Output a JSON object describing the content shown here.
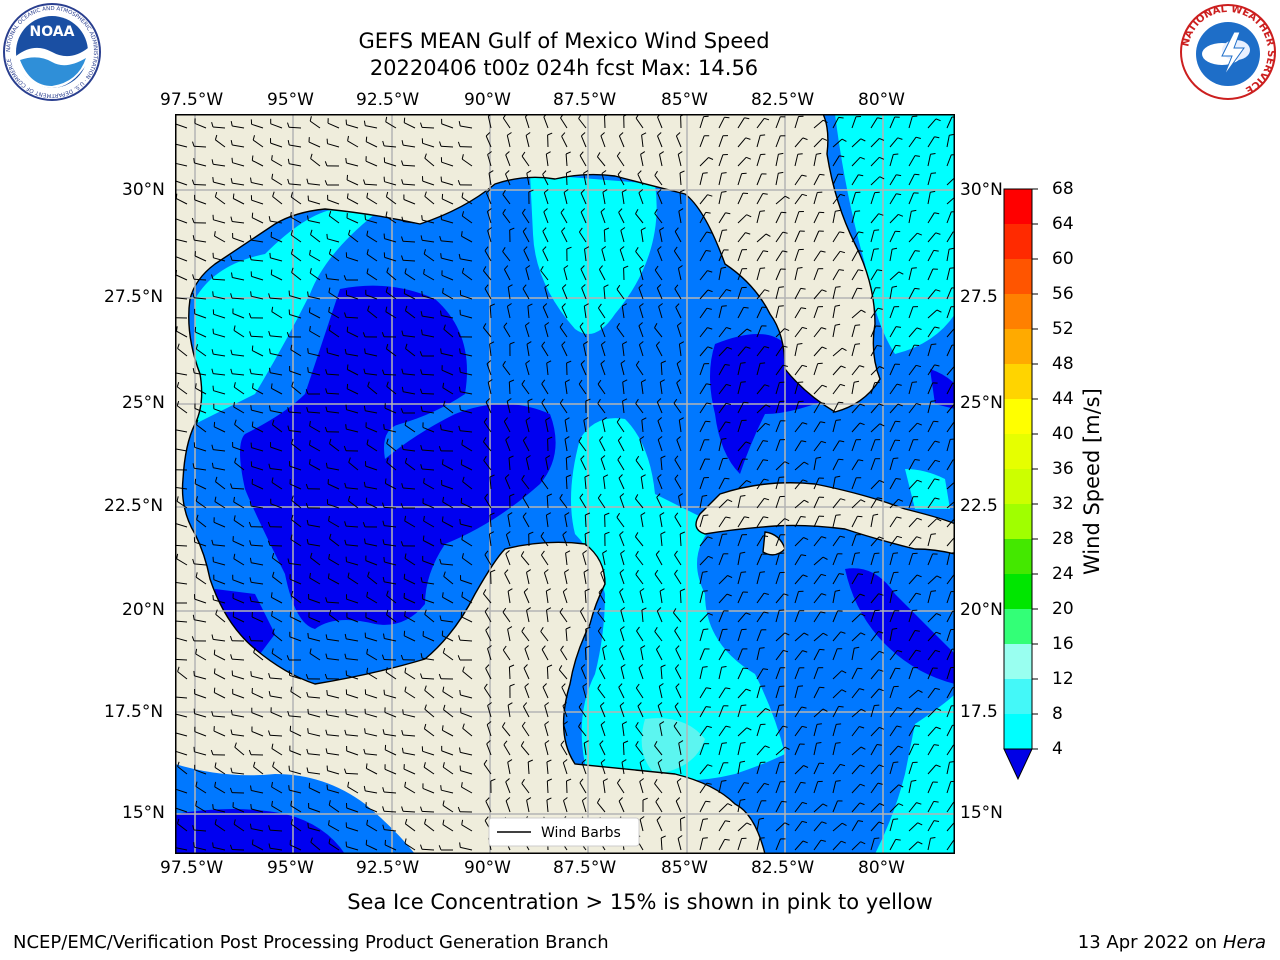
{
  "title": {
    "line1": "GEFS MEAN Gulf of Mexico Wind Speed",
    "line2": "20220406 t00z 024h fcst   Max: 14.56"
  },
  "logos": {
    "left": {
      "name": "NOAA",
      "ring_text": "NATIONAL OCEANIC AND ATMOSPHERIC ADMINISTRATION · U.S. DEPARTMENT OF COMMERCE"
    },
    "right": {
      "name": "NATIONAL WEATHER SERVICE"
    }
  },
  "map": {
    "lon_labels": [
      "97.5°W",
      "95°W",
      "92.5°W",
      "90°W",
      "87.5°W",
      "85°W",
      "82.5°W",
      "80°W"
    ],
    "lat_labels_left": [
      "30°N",
      "27.5°N",
      "25°N",
      "22.5°N",
      "20°N",
      "17.5°N",
      "15°N"
    ],
    "lat_labels_right": [
      "30°N",
      "27.5",
      "25°N",
      "22.5",
      "20°N",
      "17.5",
      "15°N"
    ],
    "legend_label": "Wind Barbs",
    "colors": {
      "land": "#efeddc",
      "grid": "#b4b4b4",
      "c1": "#0000f0",
      "c2": "#0078ff",
      "c3": "#00ffff",
      "c4": "#5cf5f0"
    }
  },
  "colorbar": {
    "label": "Wind Speed [m/s]",
    "ticks": [
      "68",
      "64",
      "60",
      "56",
      "52",
      "48",
      "44",
      "40",
      "36",
      "32",
      "28",
      "24",
      "20",
      "16",
      "12",
      "8",
      "4"
    ],
    "colors": [
      "#ff0000",
      "#ff2a00",
      "#ff5500",
      "#ff8000",
      "#ffaa00",
      "#ffd400",
      "#ffff00",
      "#e6ff00",
      "#ccff00",
      "#a0ff00",
      "#44e800",
      "#00e600",
      "#33ff77",
      "#99fff0",
      "#44f8f8",
      "#00ffff",
      "#0078ff"
    ],
    "extend_color": "#0000e6"
  },
  "subtitle": "Sea Ice Concentration > 15% is shown in pink to yellow",
  "footer": {
    "left": "NCEP/EMC/Verification Post Processing Product Generation Branch",
    "date": "13 Apr 2022 on ",
    "host": "Hera"
  }
}
